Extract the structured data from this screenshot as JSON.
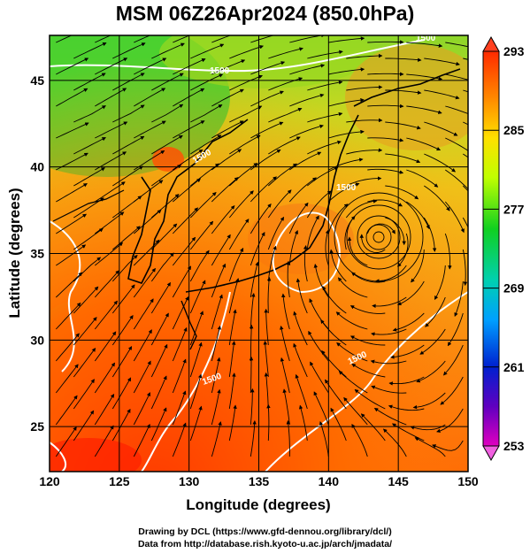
{
  "title": "MSM 06Z26Apr2024 (850.0hPa)",
  "map": {
    "x_label": "Longitude (degrees)",
    "y_label": "Latitude  (degrees)",
    "lon_range": [
      120,
      150
    ],
    "lat_range": [
      22.4,
      47.6
    ],
    "lon_ticks": [
      "120",
      "125",
      "130",
      "135",
      "140",
      "145",
      "150"
    ],
    "lat_ticks": [
      "25",
      "30",
      "35",
      "40",
      "45"
    ],
    "grid": true,
    "contour_labels": [
      "1500",
      "1500",
      "1500",
      "1500",
      "1500",
      "1500"
    ]
  },
  "colorbar": {
    "ticks": [
      "293",
      "285",
      "277",
      "269",
      "261",
      "253"
    ],
    "range": [
      253,
      293
    ]
  },
  "credits": {
    "line1": "Drawing by DCL (https://www.gfd-dennou.org/library/dcl/)",
    "line2": "Data from http://database.rish.kyoto-u.ac.jp/arch/jmadata/"
  }
}
